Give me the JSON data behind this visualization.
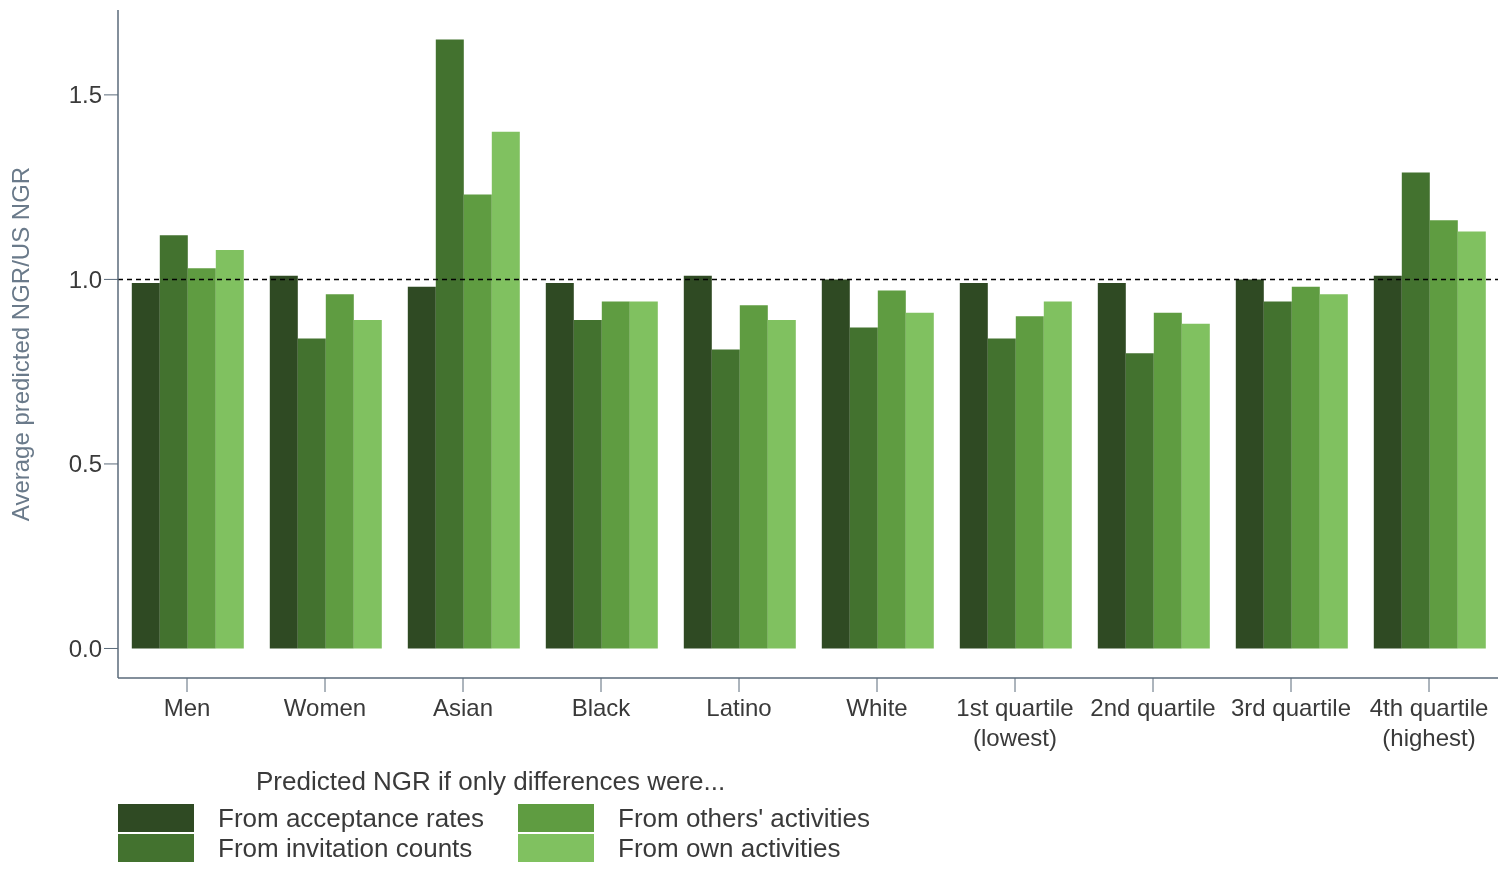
{
  "chart_data": {
    "type": "bar",
    "ylabel": "Average predicted NGR/US NGR",
    "legend_title": "Predicted NGR if only differences were...",
    "categories": [
      "Men",
      "Women",
      "Asian",
      "Black",
      "Latino",
      "White",
      "1st quartile\n(lowest)",
      "2nd quartile",
      "3rd quartile",
      "4th quartile\n(highest)"
    ],
    "series": [
      {
        "name": "From acceptance rates",
        "color": "#2f4a23",
        "values": [
          0.99,
          1.01,
          0.98,
          0.99,
          1.01,
          1.0,
          0.99,
          0.99,
          1.0,
          1.01
        ]
      },
      {
        "name": "From invitation counts",
        "color": "#43722f",
        "values": [
          1.12,
          0.84,
          1.65,
          0.89,
          0.81,
          0.87,
          0.84,
          0.8,
          0.94,
          1.29
        ]
      },
      {
        "name": "From others' activities",
        "color": "#5f9c41",
        "values": [
          1.03,
          0.96,
          1.23,
          0.94,
          0.93,
          0.97,
          0.9,
          0.91,
          0.98,
          1.16
        ]
      },
      {
        "name": "From own activities",
        "color": "#80c160",
        "values": [
          1.08,
          0.89,
          1.4,
          0.94,
          0.89,
          0.91,
          0.94,
          0.88,
          0.96,
          1.13
        ]
      }
    ],
    "ylim": [
      -0.08,
      1.73
    ],
    "yticks": [
      {
        "value": 0,
        "label": "0.0"
      },
      {
        "value": 0.5,
        "label": "0.5"
      },
      {
        "value": 1,
        "label": "1.0"
      },
      {
        "value": 1.5,
        "label": "1.5"
      }
    ],
    "ref_lines": [
      {
        "axis": "y",
        "value": 1,
        "color": "#000000",
        "line_style": "dashed"
      }
    ],
    "grid": false,
    "legend": "bottom left"
  }
}
